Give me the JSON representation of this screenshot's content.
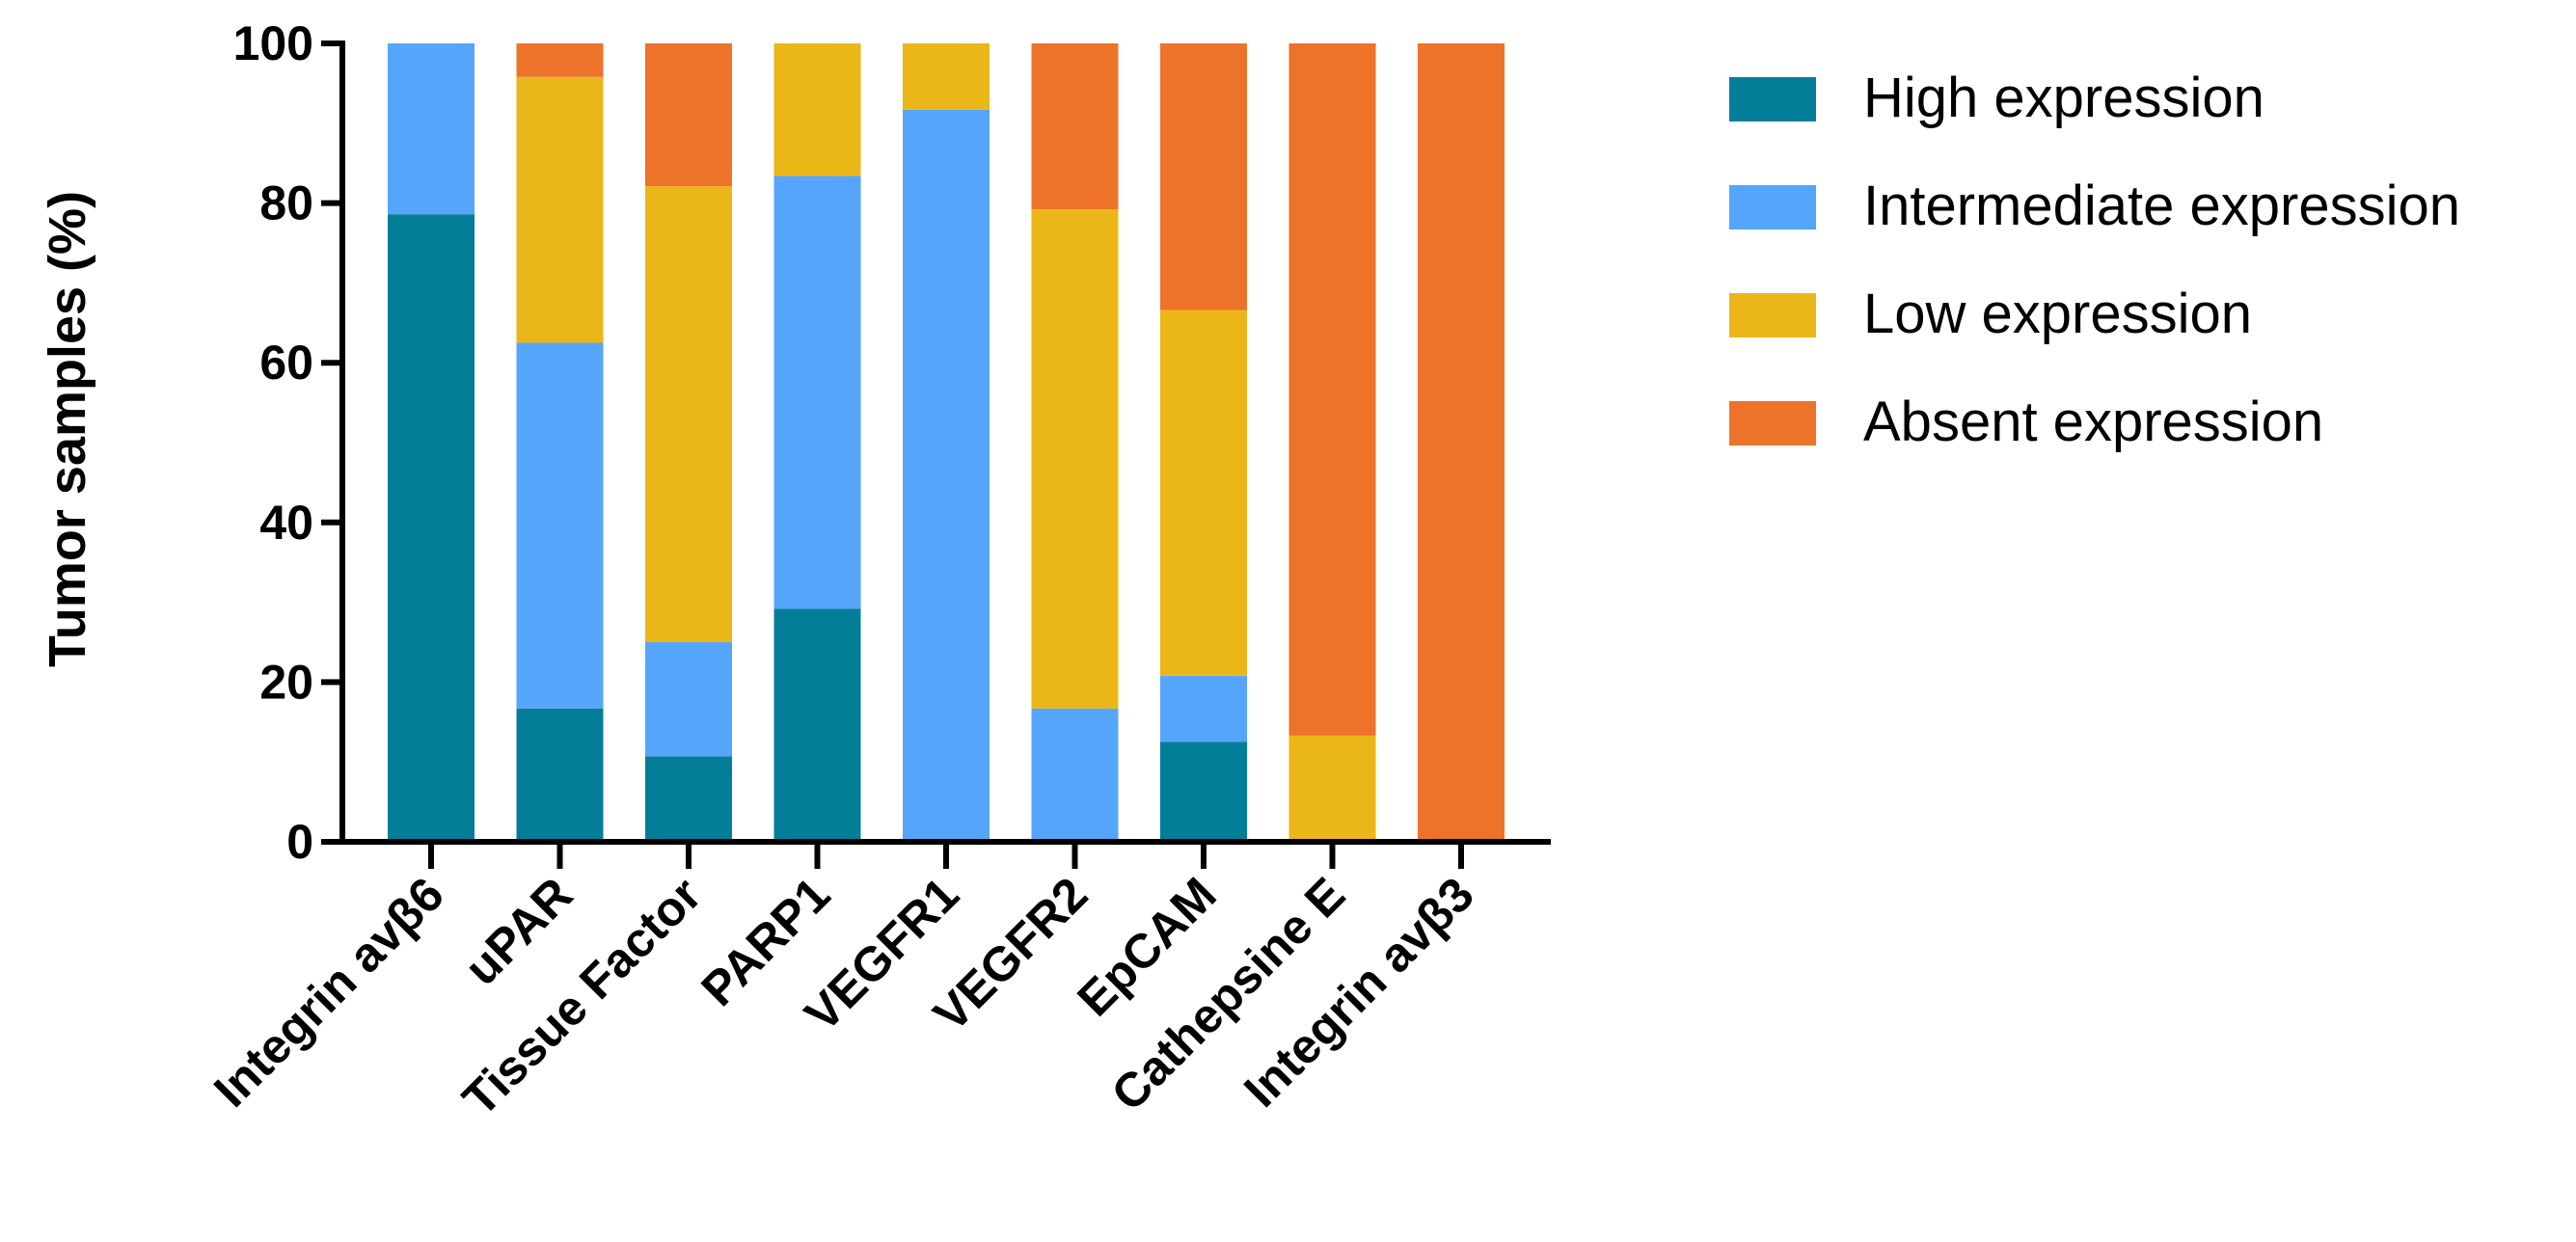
{
  "chart_data": {
    "type": "bar",
    "stacked": true,
    "title": "",
    "xlabel": "",
    "ylabel": "Tumor samples (%)",
    "ylim": [
      0,
      100
    ],
    "yticks": [
      0,
      20,
      40,
      60,
      80,
      100
    ],
    "grid": false,
    "legend_position": "right",
    "categories": [
      "Integrin avβ6",
      "uPAR",
      "Tissue Factor",
      "PARP1",
      "VEGFR1",
      "VEGFR2",
      "EpCAM",
      "Cathepsine E",
      "Integrin avβ3"
    ],
    "series": [
      {
        "name": "High expression",
        "color": "#047E98",
        "values": [
          78.6,
          16.7,
          10.7,
          29.2,
          0,
          0,
          12.5,
          0,
          0
        ]
      },
      {
        "name": "Intermediate expression",
        "color": "#55A5FB",
        "values": [
          21.4,
          45.8,
          14.3,
          54.2,
          91.7,
          16.7,
          8.3,
          0,
          0
        ]
      },
      {
        "name": "Low expression",
        "color": "#EBB617",
        "values": [
          0,
          33.3,
          57.1,
          16.6,
          8.3,
          62.5,
          45.8,
          13.3,
          0
        ]
      },
      {
        "name": "Absent expression",
        "color": "#EE732A",
        "values": [
          0,
          4.2,
          17.9,
          0,
          0,
          20.8,
          33.4,
          86.7,
          100
        ]
      }
    ]
  }
}
